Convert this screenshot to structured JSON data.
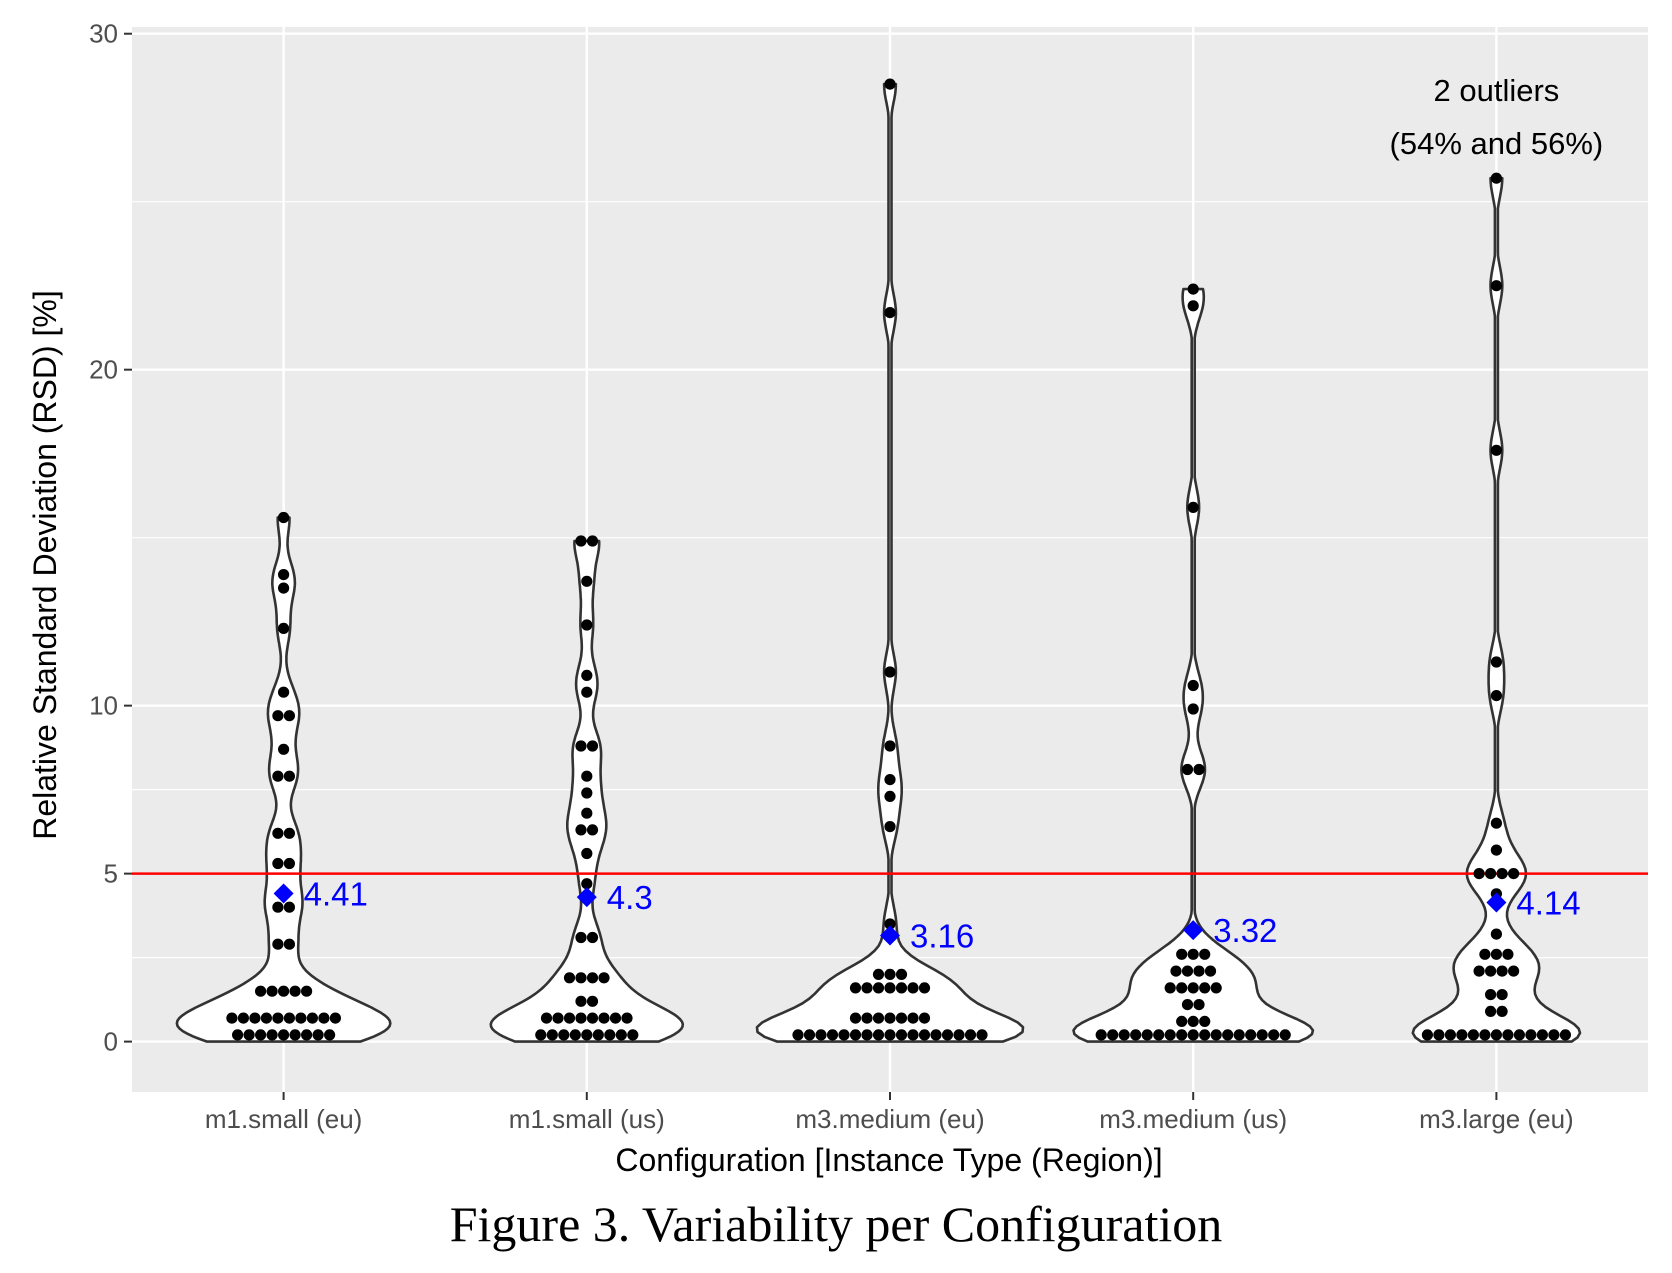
{
  "figure": {
    "caption": "Figure 3.   Variability per Configuration"
  },
  "chart_data": {
    "type": "violin",
    "title": "",
    "xlabel": "Configuration [Instance Type (Region)]",
    "ylabel": "Relative Standard Deviation (RSD) [%]",
    "ylim": [
      -1.5,
      30.2
    ],
    "yticks": [
      0,
      5,
      10,
      20,
      30
    ],
    "grid": true,
    "threshold": {
      "value": 5,
      "color": "#ff0000"
    },
    "mean_color": "#0000ff",
    "annotation": {
      "line1": "2 outliers",
      "line2": "(54% and 56%)",
      "category": "m3.large (eu)",
      "y": 28
    },
    "categories": [
      "m1.small (eu)",
      "m1.small (us)",
      "m3.medium (eu)",
      "m3.medium (us)",
      "m3.large (eu)"
    ],
    "series": [
      {
        "name": "m1.small (eu)",
        "mean": 4.41,
        "mean_label": "4.41",
        "max": 15.6,
        "points": [
          0.2,
          0.2,
          0.2,
          0.2,
          0.2,
          0.2,
          0.2,
          0.2,
          0.2,
          0.7,
          0.7,
          0.7,
          0.7,
          0.7,
          0.7,
          0.7,
          0.7,
          0.7,
          0.7,
          1.5,
          1.5,
          1.5,
          1.5,
          1.5,
          2.9,
          2.9,
          4.0,
          4.0,
          4.4,
          5.3,
          5.3,
          6.2,
          6.2,
          7.9,
          7.9,
          8.7,
          9.7,
          9.7,
          10.4,
          12.3,
          13.5,
          13.9,
          15.6
        ]
      },
      {
        "name": "m1.small (us)",
        "mean": 4.3,
        "mean_label": "4.3",
        "max": 14.9,
        "points": [
          0.2,
          0.2,
          0.2,
          0.2,
          0.2,
          0.2,
          0.2,
          0.2,
          0.2,
          0.7,
          0.7,
          0.7,
          0.7,
          0.7,
          0.7,
          0.7,
          0.7,
          1.2,
          1.2,
          1.9,
          1.9,
          1.9,
          1.9,
          3.1,
          3.1,
          4.7,
          5.6,
          6.3,
          6.3,
          6.8,
          7.4,
          7.9,
          8.8,
          8.8,
          10.4,
          10.9,
          12.4,
          13.7,
          14.9,
          14.9
        ]
      },
      {
        "name": "m3.medium (eu)",
        "mean": 3.16,
        "mean_label": "3.16",
        "max": 28.5,
        "points": [
          0.2,
          0.2,
          0.2,
          0.2,
          0.2,
          0.2,
          0.2,
          0.2,
          0.2,
          0.2,
          0.2,
          0.2,
          0.2,
          0.2,
          0.2,
          0.2,
          0.2,
          0.7,
          0.7,
          0.7,
          0.7,
          0.7,
          0.7,
          0.7,
          1.6,
          1.6,
          1.6,
          1.6,
          1.6,
          1.6,
          1.6,
          2.0,
          2.0,
          2.0,
          3.5,
          6.4,
          7.3,
          7.8,
          8.8,
          11.0,
          21.7,
          28.5
        ]
      },
      {
        "name": "m3.medium (us)",
        "mean": 3.32,
        "mean_label": "3.32",
        "max": 22.4,
        "points": [
          0.2,
          0.2,
          0.2,
          0.2,
          0.2,
          0.2,
          0.2,
          0.2,
          0.2,
          0.2,
          0.2,
          0.2,
          0.2,
          0.2,
          0.2,
          0.2,
          0.2,
          0.6,
          0.6,
          0.6,
          1.1,
          1.1,
          1.6,
          1.6,
          1.6,
          1.6,
          1.6,
          2.1,
          2.1,
          2.1,
          2.1,
          2.6,
          2.6,
          2.6,
          8.1,
          8.1,
          9.9,
          10.6,
          15.9,
          21.9,
          22.4
        ]
      },
      {
        "name": "m3.large (eu)",
        "mean": 4.14,
        "mean_label": "4.14",
        "max": 25.7,
        "points": [
          0.2,
          0.2,
          0.2,
          0.2,
          0.2,
          0.2,
          0.2,
          0.2,
          0.2,
          0.2,
          0.2,
          0.2,
          0.2,
          0.9,
          0.9,
          1.4,
          1.4,
          2.1,
          2.1,
          2.1,
          2.1,
          2.6,
          2.6,
          2.6,
          3.2,
          4.4,
          5.0,
          5.0,
          5.0,
          5.0,
          5.7,
          6.5,
          10.3,
          11.3,
          17.6,
          22.5,
          25.7
        ]
      }
    ]
  }
}
